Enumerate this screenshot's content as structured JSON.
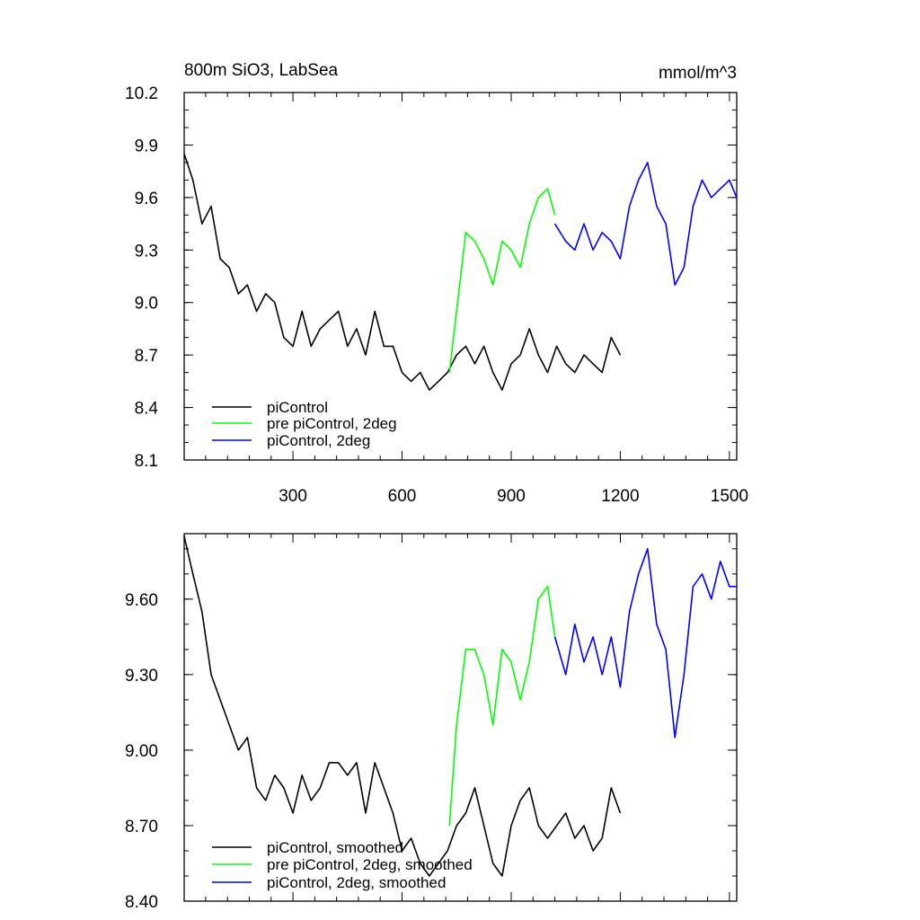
{
  "chart_data": [
    {
      "type": "line",
      "title_left": "800m SiO3, LabSea",
      "title_right": "mmol/m^3",
      "xlim": [
        1,
        1520
      ],
      "ylim": [
        8.1,
        10.2
      ],
      "xticks": [
        300,
        600,
        900,
        1200,
        1500
      ],
      "yticks": [
        8.1,
        8.4,
        8.7,
        9.0,
        9.3,
        9.6,
        9.9,
        10.2
      ],
      "ytick_labels": [
        "8.1",
        "8.4",
        "8.7",
        "9.0",
        "9.3",
        "9.6",
        "9.9",
        "10.2"
      ],
      "legend_position": "lower-left",
      "series": [
        {
          "name": "piControl",
          "color": "#000000",
          "x": [
            1,
            25,
            50,
            75,
            100,
            125,
            150,
            175,
            200,
            225,
            250,
            275,
            300,
            325,
            350,
            375,
            400,
            425,
            450,
            475,
            500,
            525,
            550,
            575,
            600,
            625,
            650,
            675,
            700,
            725,
            750,
            775,
            800,
            825,
            850,
            875,
            900,
            925,
            950,
            975,
            1000,
            1025,
            1050,
            1075,
            1100,
            1125,
            1150,
            1175,
            1200
          ],
          "y": [
            9.85,
            9.7,
            9.45,
            9.55,
            9.25,
            9.2,
            9.05,
            9.1,
            8.95,
            9.05,
            9.0,
            8.8,
            8.75,
            8.95,
            8.75,
            8.85,
            8.9,
            8.95,
            8.75,
            8.85,
            8.7,
            8.95,
            8.75,
            8.75,
            8.6,
            8.55,
            8.6,
            8.5,
            8.55,
            8.6,
            8.7,
            8.75,
            8.65,
            8.75,
            8.6,
            8.5,
            8.65,
            8.7,
            8.85,
            8.7,
            8.6,
            8.75,
            8.65,
            8.6,
            8.7,
            8.65,
            8.6,
            8.8,
            8.7
          ]
        },
        {
          "name": "pre piControl, 2deg",
          "color": "#00ff00",
          "x": [
            730,
            750,
            775,
            800,
            825,
            850,
            875,
            900,
            925,
            950,
            975,
            1000,
            1020
          ],
          "y": [
            8.6,
            8.95,
            9.4,
            9.35,
            9.25,
            9.1,
            9.35,
            9.3,
            9.2,
            9.45,
            9.6,
            9.65,
            9.5
          ]
        },
        {
          "name": "piControl, 2deg",
          "color": "#0000ff",
          "x": [
            1020,
            1050,
            1075,
            1100,
            1125,
            1150,
            1175,
            1200,
            1225,
            1250,
            1275,
            1300,
            1325,
            1350,
            1375,
            1400,
            1425,
            1450,
            1475,
            1500,
            1520
          ],
          "y": [
            9.45,
            9.35,
            9.3,
            9.45,
            9.3,
            9.4,
            9.35,
            9.25,
            9.55,
            9.7,
            9.8,
            9.55,
            9.45,
            9.1,
            9.2,
            9.55,
            9.7,
            9.6,
            9.65,
            9.7,
            9.6
          ]
        }
      ]
    },
    {
      "type": "line",
      "xlim": [
        1,
        1520
      ],
      "ylim": [
        8.4,
        9.86
      ],
      "xticks": [
        300,
        600,
        900,
        1200,
        1500
      ],
      "yticks": [
        8.4,
        8.7,
        9.0,
        9.3,
        9.6
      ],
      "ytick_labels": [
        "8.40",
        "8.70",
        "9.00",
        "9.30",
        "9.60"
      ],
      "legend_position": "lower-left",
      "series": [
        {
          "name": "piControl, smoothed",
          "color": "#000000",
          "x": [
            1,
            25,
            50,
            75,
            100,
            125,
            150,
            175,
            200,
            225,
            250,
            275,
            300,
            325,
            350,
            375,
            400,
            425,
            450,
            475,
            500,
            525,
            550,
            575,
            600,
            625,
            650,
            675,
            700,
            725,
            750,
            775,
            800,
            825,
            850,
            875,
            900,
            925,
            950,
            975,
            1000,
            1025,
            1050,
            1075,
            1100,
            1125,
            1150,
            1175,
            1200
          ],
          "y": [
            9.85,
            9.7,
            9.55,
            9.3,
            9.2,
            9.1,
            9.0,
            9.05,
            8.85,
            8.8,
            8.9,
            8.85,
            8.75,
            8.9,
            8.8,
            8.85,
            8.95,
            8.95,
            8.9,
            8.95,
            8.75,
            8.95,
            8.85,
            8.75,
            8.6,
            8.65,
            8.55,
            8.5,
            8.55,
            8.6,
            8.7,
            8.75,
            8.85,
            8.7,
            8.55,
            8.5,
            8.7,
            8.8,
            8.85,
            8.7,
            8.65,
            8.7,
            8.75,
            8.65,
            8.7,
            8.6,
            8.65,
            8.85,
            8.75
          ]
        },
        {
          "name": "pre piControl, 2deg, smoothed",
          "color": "#00ff00",
          "x": [
            730,
            750,
            775,
            800,
            825,
            850,
            875,
            900,
            925,
            950,
            975,
            1000,
            1020
          ],
          "y": [
            8.7,
            9.1,
            9.4,
            9.4,
            9.3,
            9.1,
            9.4,
            9.35,
            9.2,
            9.35,
            9.6,
            9.65,
            9.45
          ]
        },
        {
          "name": "piControl, 2deg, smoothed",
          "color": "#0000ff",
          "x": [
            1020,
            1050,
            1075,
            1100,
            1125,
            1150,
            1175,
            1200,
            1225,
            1250,
            1275,
            1300,
            1325,
            1350,
            1375,
            1400,
            1425,
            1450,
            1475,
            1500,
            1520
          ],
          "y": [
            9.45,
            9.3,
            9.5,
            9.35,
            9.45,
            9.3,
            9.45,
            9.25,
            9.55,
            9.7,
            9.8,
            9.5,
            9.4,
            9.05,
            9.3,
            9.65,
            9.7,
            9.6,
            9.75,
            9.65,
            9.65
          ]
        }
      ]
    }
  ]
}
